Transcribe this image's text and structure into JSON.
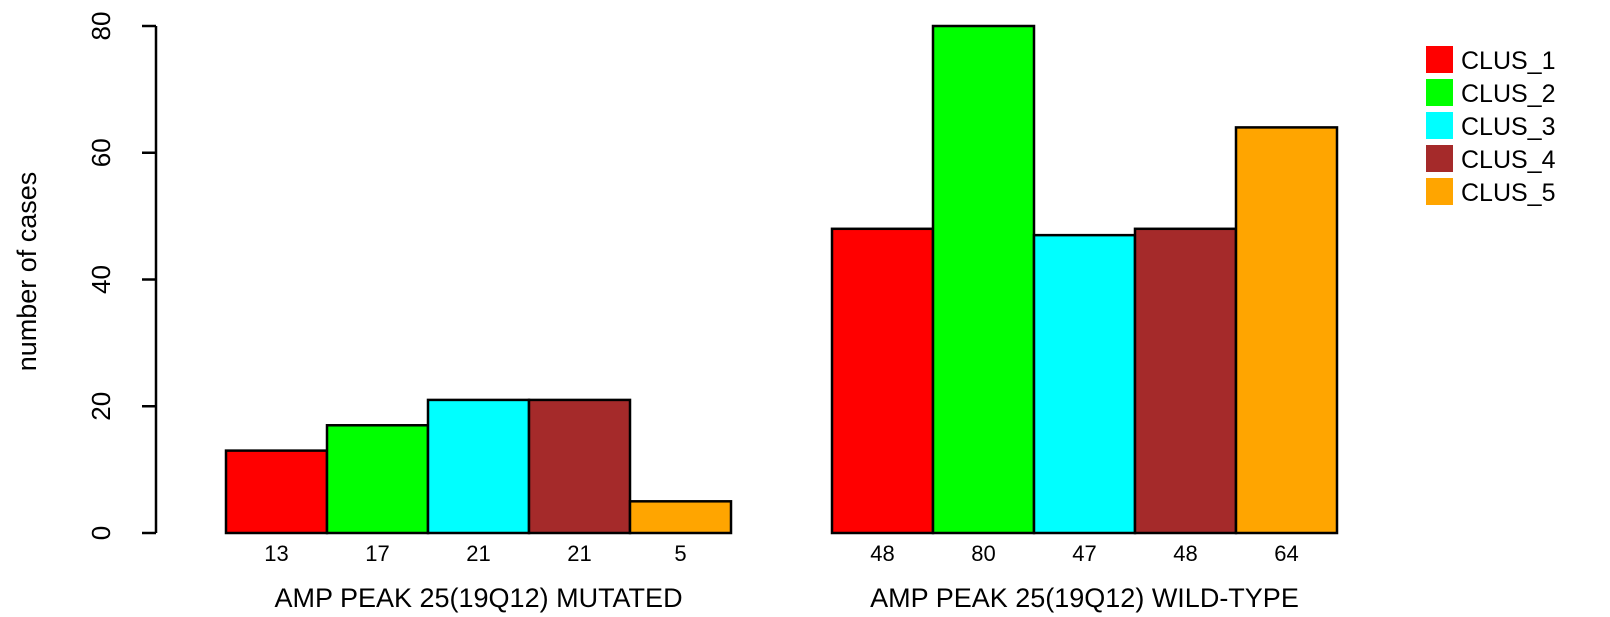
{
  "chart_data": {
    "type": "bar",
    "title": "",
    "xlabel": "",
    "ylabel": "number of cases",
    "ylim": [
      0,
      80
    ],
    "yticks": [
      0,
      20,
      40,
      60,
      80
    ],
    "grid": false,
    "legend_position": "top-right",
    "categories": [
      "AMP PEAK 25(19Q12) MUTATED",
      "AMP PEAK 25(19Q12) WILD-TYPE"
    ],
    "series": [
      {
        "name": "CLUS_1",
        "color": "#ff0000",
        "values": [
          13,
          48
        ]
      },
      {
        "name": "CLUS_2",
        "color": "#00ff00",
        "values": [
          17,
          80
        ]
      },
      {
        "name": "CLUS_3",
        "color": "#00ffff",
        "values": [
          21,
          47
        ]
      },
      {
        "name": "CLUS_4",
        "color": "#a52a2a",
        "values": [
          21,
          48
        ]
      },
      {
        "name": "CLUS_5",
        "color": "#ffa500",
        "values": [
          5,
          64
        ]
      }
    ]
  }
}
